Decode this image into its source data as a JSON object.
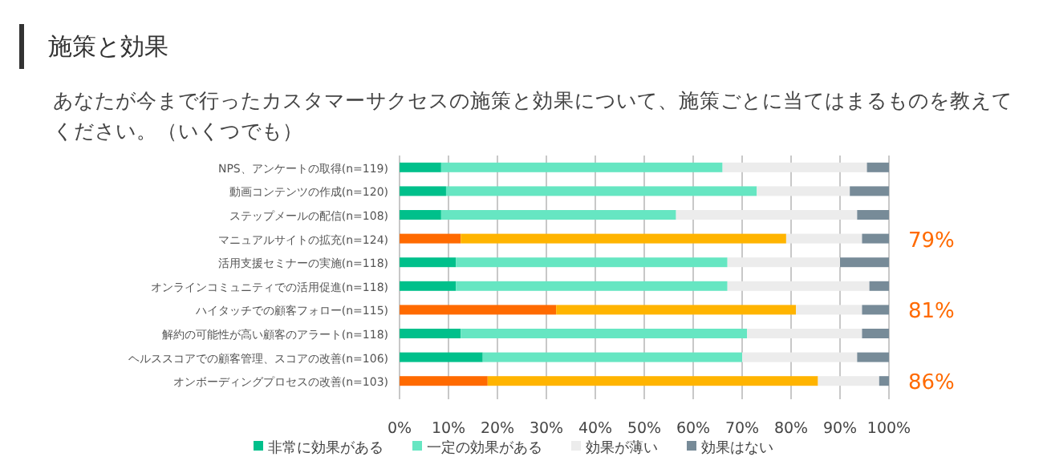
{
  "chart_data": {
    "type": "bar",
    "orientation": "horizontal",
    "stacked": true,
    "title": "施策と効果",
    "subtitle": "あなたが今まで行ったカスタマーサクセスの施策と効果について、施策ごとに当てはまるものを教えてください。（いくつでも）",
    "categories": [
      "NPS、アンケートの取得(n=119)",
      "動画コンテンツの作成(n=120)",
      "ステップメールの配信(n=108)",
      "マニュアルサイトの拡充(n=124)",
      "活用支援セミナーの実施(n=118)",
      "オンラインコミュニティでの活用促進(n=118)",
      "ハイタッチでの顧客フォロー(n=115)",
      "解約の可能性が高い顧客のアラート(n=118)",
      "ヘルススコアでの顧客管理、スコアの改善(n=106)",
      "オンボーディングプロセスの改善(n=103)"
    ],
    "series": [
      {
        "name": "非常に効果がある",
        "color": "#00c08b",
        "colors": [
          "#00c08b",
          "#00c08b",
          "#00c08b",
          "#ff6a00",
          "#00c08b",
          "#00c08b",
          "#ff6a00",
          "#00c08b",
          "#00c08b",
          "#ff6a00"
        ],
        "values": [
          8.5,
          9.5,
          8.5,
          12.5,
          11.5,
          11.5,
          32,
          12.5,
          17,
          18
        ]
      },
      {
        "name": "一定の効果がある",
        "color": "#66e6c2",
        "colors": [
          "#66e6c2",
          "#66e6c2",
          "#66e6c2",
          "#ffb400",
          "#66e6c2",
          "#66e6c2",
          "#ffb400",
          "#66e6c2",
          "#66e6c2",
          "#ffb400"
        ],
        "values": [
          57.5,
          63.5,
          48,
          66.5,
          55.5,
          55.5,
          49,
          58.5,
          53,
          67.5
        ]
      },
      {
        "name": "効果が薄い",
        "color": "#ececec",
        "values": [
          29.5,
          19,
          37,
          15.5,
          23,
          29,
          13.5,
          23.5,
          23.5,
          12.5
        ]
      },
      {
        "name": "効果はない",
        "color": "#778b98",
        "values": [
          4.5,
          8,
          6.5,
          5.5,
          10,
          4,
          5.5,
          5.5,
          6.5,
          2
        ]
      }
    ],
    "xlim": [
      0,
      100
    ],
    "xticks": [
      {
        "value": 0,
        "label": "0%"
      },
      {
        "value": 10,
        "label": "10%"
      },
      {
        "value": 20,
        "label": "20%"
      },
      {
        "value": 30,
        "label": "30%"
      },
      {
        "value": 40,
        "label": "40%"
      },
      {
        "value": 50,
        "label": "50%"
      },
      {
        "value": 60,
        "label": "60%"
      },
      {
        "value": 70,
        "label": "70%"
      },
      {
        "value": 80,
        "label": "80%"
      },
      {
        "value": 90,
        "label": "90%"
      },
      {
        "value": 100,
        "label": "100%"
      }
    ],
    "grid": "x",
    "legend": "bottom",
    "annotations": [
      "79%",
      "81%",
      "86%"
    ]
  }
}
